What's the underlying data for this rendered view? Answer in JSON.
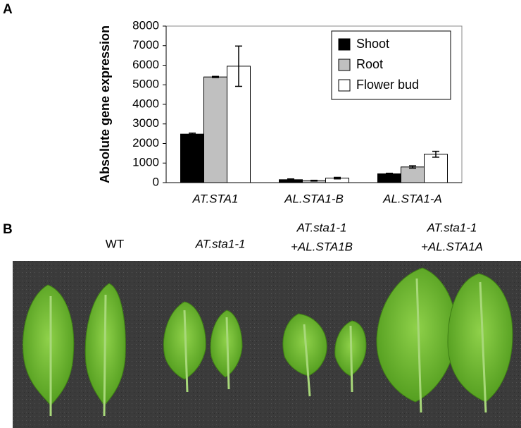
{
  "panel_labels": [
    "A",
    "B"
  ],
  "chart_data": {
    "type": "bar",
    "ylabel": "Absolute gene expression",
    "categories": [
      "AT.STA1",
      "AL.STA1-B",
      "AL.STA1-A"
    ],
    "series": [
      {
        "name": "Shoot",
        "color": "#000000",
        "values": [
          2480,
          150,
          450
        ],
        "errors": [
          50,
          40,
          30
        ]
      },
      {
        "name": "Root",
        "color": "#c0c0c0",
        "values": [
          5400,
          100,
          800
        ],
        "errors": [
          30,
          20,
          60
        ]
      },
      {
        "name": "Flower bud",
        "color": "#ffffff",
        "values": [
          5950,
          230,
          1450
        ],
        "errors": [
          1030,
          40,
          150
        ]
      }
    ],
    "ylim": [
      0,
      8000
    ],
    "yticks": [
      0,
      1000,
      2000,
      3000,
      4000,
      5000,
      6000,
      7000,
      8000
    ],
    "legend": "upper right",
    "grid": false
  },
  "photo_labels": [
    [
      "WT"
    ],
    [
      "AT.sta1-1"
    ],
    [
      "AT.sta1-1",
      "+AL.STA1B"
    ],
    [
      "AT.sta1-1",
      "+AL.STA1A"
    ]
  ]
}
